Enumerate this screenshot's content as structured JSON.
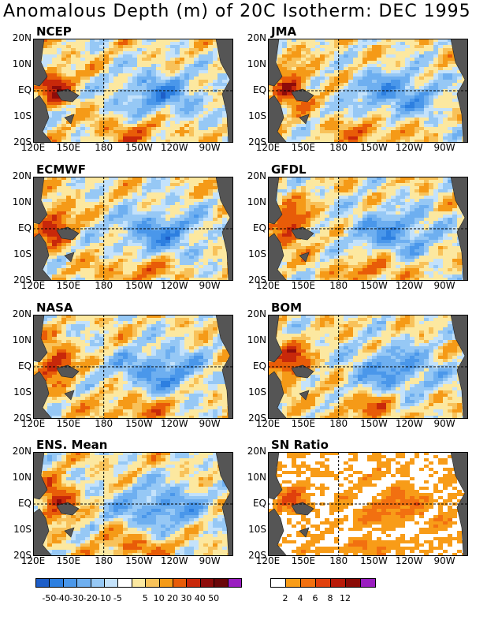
{
  "title": "Anomalous Depth (m) of 20C Isotherm: DEC 1995",
  "chart_data": {
    "type": "heatmap",
    "title": "Anomalous Depth (m) of 20C Isotherm: DEC 1995",
    "lat_labels": [
      "20N",
      "10N",
      "EQ",
      "10S",
      "20S"
    ],
    "lon_labels": [
      "120E",
      "150E",
      "180",
      "150W",
      "120W",
      "90W"
    ],
    "panels": [
      {
        "name": "NCEP"
      },
      {
        "name": "JMA"
      },
      {
        "name": "ECMWF"
      },
      {
        "name": "GFDL"
      },
      {
        "name": "NASA"
      },
      {
        "name": "BOM"
      },
      {
        "name": "ENS. Mean"
      },
      {
        "name": "SN Ratio"
      }
    ],
    "anomaly_colorbar": {
      "tick_labels": [
        "-50",
        "-40",
        "-30",
        "-20",
        "-10",
        "-5",
        "5",
        "10",
        "20",
        "30",
        "40",
        "50"
      ],
      "colors": [
        "#1d5ec8",
        "#2d7fe0",
        "#4a97ea",
        "#6eaff0",
        "#96c8f5",
        "#c4e2fb",
        "#ffffff",
        "#fce8a0",
        "#f8c25a",
        "#f59a17",
        "#e85c08",
        "#c8280a",
        "#8e0c0a",
        "#6a0608",
        "#9a1ec0"
      ]
    },
    "snr_colorbar": {
      "tick_labels": [
        "2",
        "4",
        "6",
        "8",
        "12"
      ],
      "colors": [
        "#ffffff",
        "#f89c18",
        "#f27010",
        "#e0400c",
        "#b81a08",
        "#8a0a06",
        "#9a1ec0"
      ]
    }
  }
}
